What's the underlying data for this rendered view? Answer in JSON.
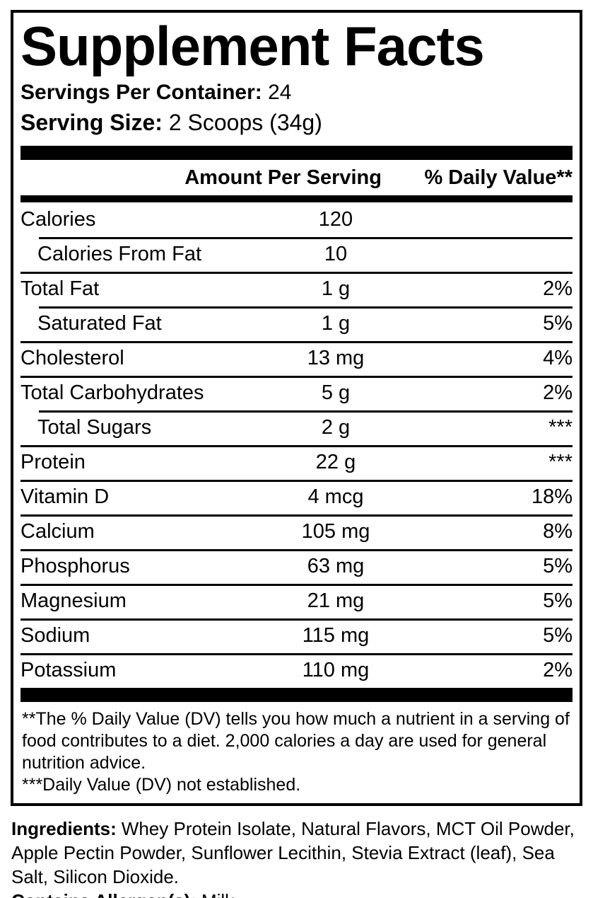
{
  "label": {
    "title": "Supplement Facts",
    "servings_per_container": {
      "label": "Servings Per Container:",
      "value": "24"
    },
    "serving_size": {
      "label": "Serving Size:",
      "value": "2 Scoops (34g)"
    },
    "columns": {
      "amount": "Amount Per Serving",
      "daily_value": "% Daily Value**"
    },
    "rows": [
      {
        "name": "Calories",
        "amount": "120",
        "dv": "",
        "indent": false
      },
      {
        "name": "Calories From Fat",
        "amount": "10",
        "dv": "",
        "indent": true
      },
      {
        "name": "Total Fat",
        "amount": "1 g",
        "dv": "2%",
        "indent": false
      },
      {
        "name": "Saturated Fat",
        "amount": "1 g",
        "dv": "5%",
        "indent": true
      },
      {
        "name": "Cholesterol",
        "amount": "13 mg",
        "dv": "4%",
        "indent": false
      },
      {
        "name": "Total Carbohydrates",
        "amount": "5 g",
        "dv": "2%",
        "indent": false
      },
      {
        "name": "Total Sugars",
        "amount": "2 g",
        "dv": "***",
        "indent": true
      },
      {
        "name": "Protein",
        "amount": "22 g",
        "dv": "***",
        "indent": false
      },
      {
        "name": "Vitamin D",
        "amount": "4 mcg",
        "dv": "18%",
        "indent": false
      },
      {
        "name": "Calcium",
        "amount": "105 mg",
        "dv": "8%",
        "indent": false
      },
      {
        "name": "Phosphorus",
        "amount": "63 mg",
        "dv": "5%",
        "indent": false
      },
      {
        "name": "Magnesium",
        "amount": "21 mg",
        "dv": "5%",
        "indent": false
      },
      {
        "name": "Sodium",
        "amount": "115 mg",
        "dv": "5%",
        "indent": false
      },
      {
        "name": "Potassium",
        "amount": "110 mg",
        "dv": "2%",
        "indent": false
      }
    ],
    "footnotes": [
      "**The % Daily Value (DV) tells you how much a nutrient in a serving of food contributes to a diet. 2,000 calories a day are used for general nutrition advice.",
      "***Daily Value (DV) not established."
    ]
  },
  "ingredients": {
    "label": "Ingredients:",
    "value": "Whey Protein Isolate, Natural Flavors, MCT Oil Powder, Apple Pectin Powder, Sunflower Lecithin, Stevia Extract (leaf), Sea Salt, Silicon Dioxide."
  },
  "allergens": {
    "label": "Contains Allergen(s):",
    "value": "Milk"
  },
  "colors": {
    "text": "#000000",
    "background": "#ffffff",
    "divider": "#000000"
  }
}
